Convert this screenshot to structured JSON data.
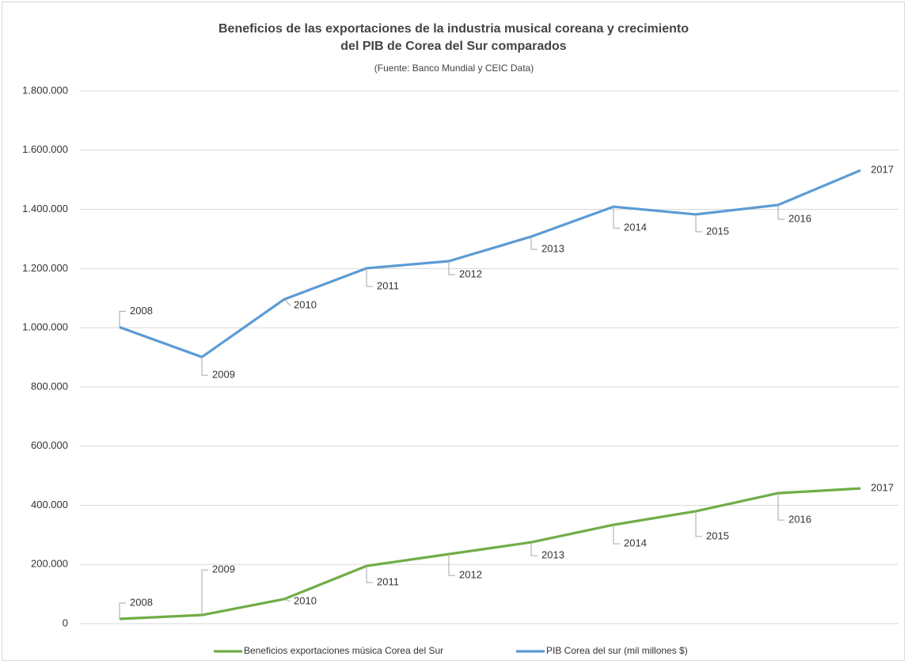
{
  "chart_data": {
    "type": "line",
    "title": "Beneficios de las exportaciones de la industria musical coreana y crecimiento del PIB de Corea del Sur comparados",
    "subtitle": "(Fuente: Banco Mundial y CEIC Data)",
    "categories": [
      "2008",
      "2009",
      "2010",
      "2011",
      "2012",
      "2013",
      "2014",
      "2015",
      "2016",
      "2017"
    ],
    "series": [
      {
        "name": "Beneficios exportaciones música Corea del Sur",
        "color": "#70ad47",
        "values": [
          16000,
          29000,
          83000,
          195000,
          235000,
          275000,
          334000,
          380000,
          441000,
          457000
        ]
      },
      {
        "name": "PIB Corea del sur (mil millones $)",
        "color": "#5b9bd5",
        "values": [
          1002000,
          901000,
          1096000,
          1201000,
          1225000,
          1308000,
          1409000,
          1383000,
          1415000,
          1532000
        ]
      }
    ],
    "ylim": [
      0,
      1800000
    ],
    "yticks": [
      0,
      {
        "value": 200000,
        "label": "200.000"
      },
      {
        "value": 400000,
        "label": "400.000"
      },
      {
        "value": 600000,
        "label": "600.000"
      },
      {
        "value": 800000,
        "label": "800.000"
      },
      {
        "value": 1000000,
        "label": "1.000.000"
      },
      {
        "value": 1200000,
        "label": "1.200.000"
      },
      {
        "value": 1400000,
        "label": "1.400.000"
      },
      {
        "value": 1600000,
        "label": "1.600.000"
      },
      {
        "value": 1800000,
        "label": "1.800.000"
      }
    ],
    "grid": true,
    "legend": "bottom"
  }
}
